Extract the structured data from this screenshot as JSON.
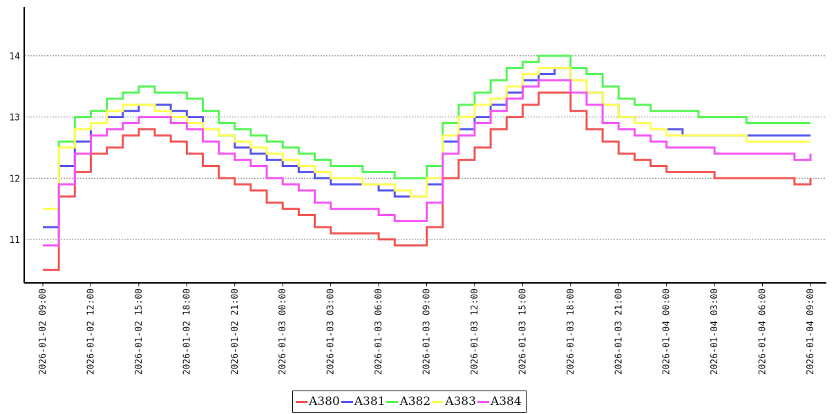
{
  "chart_data": {
    "type": "line",
    "title": "",
    "xlabel": "",
    "ylabel": "",
    "grid": "horizontal dotted",
    "legend_position": "bottom-center",
    "ylim": [
      10.3,
      14.8
    ],
    "y_ticks": [
      11,
      12,
      13,
      14
    ],
    "x_tick_labels": [
      "2026-01-02 09:00",
      "2026-01-02 12:00",
      "2026-01-02 15:00",
      "2026-01-02 18:00",
      "2026-01-02 21:00",
      "2026-01-03 00:00",
      "2026-01-03 03:00",
      "2026-01-03 06:00",
      "2026-01-03 09:00",
      "2026-01-03 12:00",
      "2026-01-03 15:00",
      "2026-01-03 18:00",
      "2026-01-03 21:00",
      "2026-01-04 00:00",
      "2026-01-04 03:00",
      "2026-01-04 06:00",
      "2026-01-04 09:00"
    ],
    "x": [
      "2026-01-02 09:00",
      "2026-01-02 10:00",
      "2026-01-02 11:00",
      "2026-01-02 12:00",
      "2026-01-02 13:00",
      "2026-01-02 14:00",
      "2026-01-02 15:00",
      "2026-01-02 16:00",
      "2026-01-02 17:00",
      "2026-01-02 18:00",
      "2026-01-02 19:00",
      "2026-01-02 20:00",
      "2026-01-02 21:00",
      "2026-01-02 22:00",
      "2026-01-02 23:00",
      "2026-01-03 00:00",
      "2026-01-03 01:00",
      "2026-01-03 02:00",
      "2026-01-03 03:00",
      "2026-01-03 04:00",
      "2026-01-03 05:00",
      "2026-01-03 06:00",
      "2026-01-03 07:00",
      "2026-01-03 08:00",
      "2026-01-03 09:00",
      "2026-01-03 10:00",
      "2026-01-03 11:00",
      "2026-01-03 12:00",
      "2026-01-03 13:00",
      "2026-01-03 14:00",
      "2026-01-03 15:00",
      "2026-01-03 16:00",
      "2026-01-03 17:00",
      "2026-01-03 18:00",
      "2026-01-03 19:00",
      "2026-01-03 20:00",
      "2026-01-03 21:00",
      "2026-01-03 22:00",
      "2026-01-03 23:00",
      "2026-01-04 00:00",
      "2026-01-04 01:00",
      "2026-01-04 02:00",
      "2026-01-04 03:00",
      "2026-01-04 04:00",
      "2026-01-04 05:00",
      "2026-01-04 06:00",
      "2026-01-04 07:00",
      "2026-01-04 08:00",
      "2026-01-04 09:00"
    ],
    "series": [
      {
        "name": "A380",
        "color": "#f25555",
        "values": [
          10.5,
          11.7,
          12.1,
          12.4,
          12.5,
          12.7,
          12.8,
          12.7,
          12.6,
          12.4,
          12.2,
          12.0,
          11.9,
          11.8,
          11.6,
          11.5,
          11.4,
          11.2,
          11.1,
          11.1,
          11.1,
          11.0,
          10.9,
          10.9,
          11.2,
          12.0,
          12.3,
          12.5,
          12.8,
          13.0,
          13.2,
          13.4,
          13.4,
          13.1,
          12.8,
          12.6,
          12.4,
          12.3,
          12.2,
          12.1,
          12.1,
          12.1,
          12.0,
          12.0,
          12.0,
          12.0,
          12.0,
          11.9,
          12.0
        ]
      },
      {
        "name": "A381",
        "color": "#5555ee",
        "values": [
          11.2,
          12.2,
          12.6,
          12.9,
          13.0,
          13.1,
          13.2,
          13.2,
          13.1,
          13.0,
          12.8,
          12.7,
          12.5,
          12.4,
          12.3,
          12.2,
          12.1,
          12.0,
          11.9,
          11.9,
          11.9,
          11.8,
          11.7,
          11.7,
          11.9,
          12.6,
          12.8,
          13.0,
          13.2,
          13.4,
          13.6,
          13.7,
          13.8,
          13.6,
          13.4,
          13.2,
          13.0,
          12.9,
          12.8,
          12.8,
          12.7,
          12.7,
          12.7,
          12.7,
          12.7,
          12.7,
          12.7,
          12.7,
          12.7
        ]
      },
      {
        "name": "A382",
        "color": "#55f555",
        "values": [
          11.5,
          12.6,
          13.0,
          13.1,
          13.3,
          13.4,
          13.5,
          13.4,
          13.4,
          13.3,
          13.1,
          12.9,
          12.8,
          12.7,
          12.6,
          12.5,
          12.4,
          12.3,
          12.2,
          12.2,
          12.1,
          12.1,
          12.0,
          12.0,
          12.2,
          12.9,
          13.2,
          13.4,
          13.6,
          13.8,
          13.9,
          14.0,
          14.0,
          13.8,
          13.7,
          13.5,
          13.3,
          13.2,
          13.1,
          13.1,
          13.1,
          13.0,
          13.0,
          13.0,
          12.9,
          12.9,
          12.9,
          12.9,
          12.9
        ]
      },
      {
        "name": "A383",
        "color": "#ffff55",
        "values": [
          11.5,
          12.5,
          12.8,
          12.9,
          13.1,
          13.2,
          13.2,
          13.1,
          13.0,
          12.9,
          12.8,
          12.7,
          12.6,
          12.5,
          12.4,
          12.3,
          12.2,
          12.1,
          12.0,
          12.0,
          11.9,
          11.9,
          11.8,
          11.7,
          12.0,
          12.7,
          13.0,
          13.2,
          13.3,
          13.5,
          13.7,
          13.8,
          13.8,
          13.6,
          13.4,
          13.2,
          13.0,
          12.9,
          12.8,
          12.7,
          12.7,
          12.7,
          12.7,
          12.7,
          12.6,
          12.6,
          12.6,
          12.6,
          12.6
        ]
      },
      {
        "name": "A384",
        "color": "#f555f5",
        "values": [
          10.9,
          11.9,
          12.4,
          12.7,
          12.8,
          12.9,
          13.0,
          13.0,
          12.9,
          12.8,
          12.6,
          12.4,
          12.3,
          12.2,
          12.0,
          11.9,
          11.8,
          11.6,
          11.5,
          11.5,
          11.5,
          11.4,
          11.3,
          11.3,
          11.6,
          12.4,
          12.7,
          12.9,
          13.1,
          13.3,
          13.5,
          13.6,
          13.6,
          13.4,
          13.2,
          12.9,
          12.8,
          12.7,
          12.6,
          12.5,
          12.5,
          12.5,
          12.4,
          12.4,
          12.4,
          12.4,
          12.4,
          12.3,
          12.4
        ]
      }
    ]
  }
}
